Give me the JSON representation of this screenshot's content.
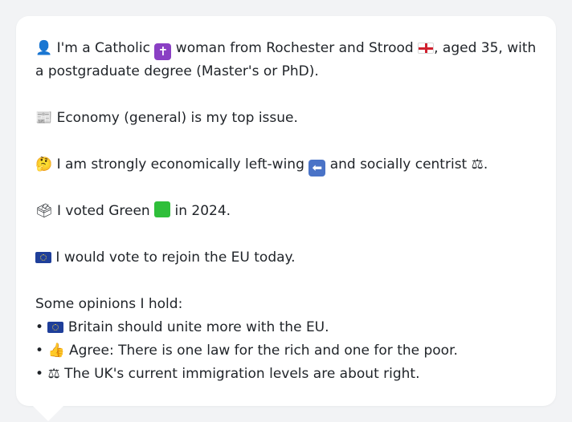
{
  "profile": {
    "intro": {
      "icon": "person-silhouette-icon",
      "part1": "I'm a Catholic",
      "religion_icon": "latin-cross-icon",
      "part2": "woman from Rochester and Strood",
      "region_icon": "england-flag-icon",
      "part3": ", aged 35, with a postgraduate degree (Master's or PhD)."
    },
    "issue": {
      "icon": "newspaper-icon",
      "text": "Economy (general) is my top issue."
    },
    "ideology": {
      "icon": "thinking-face-icon",
      "part1": "I am strongly economically left-wing",
      "left_icon": "left-arrow-icon",
      "part2": "and socially centrist",
      "centre_icon": "balance-scale-icon",
      "part3": "."
    },
    "vote": {
      "icon": "ballot-box-icon",
      "part1": "I voted Green",
      "party_icon": "green-square-icon",
      "part2": "in 2024."
    },
    "eu": {
      "icon": "eu-flag-icon",
      "text": "I would vote to rejoin the EU today."
    },
    "opinions_heading": "Some opinions I hold:",
    "opinions": [
      {
        "bullet": "•",
        "icon": "eu-flag-icon",
        "text": "Britain should unite more with the EU."
      },
      {
        "bullet": "•",
        "icon": "thumbs-up-icon",
        "text": "Agree: There is one law for the rich and one for the poor."
      },
      {
        "bullet": "•",
        "icon": "balance-scale-icon",
        "text": "The UK's current immigration levels are about right."
      }
    ]
  },
  "colors": {
    "background": "#f2f3f5",
    "card": "#ffffff",
    "text": "#1f2328"
  }
}
